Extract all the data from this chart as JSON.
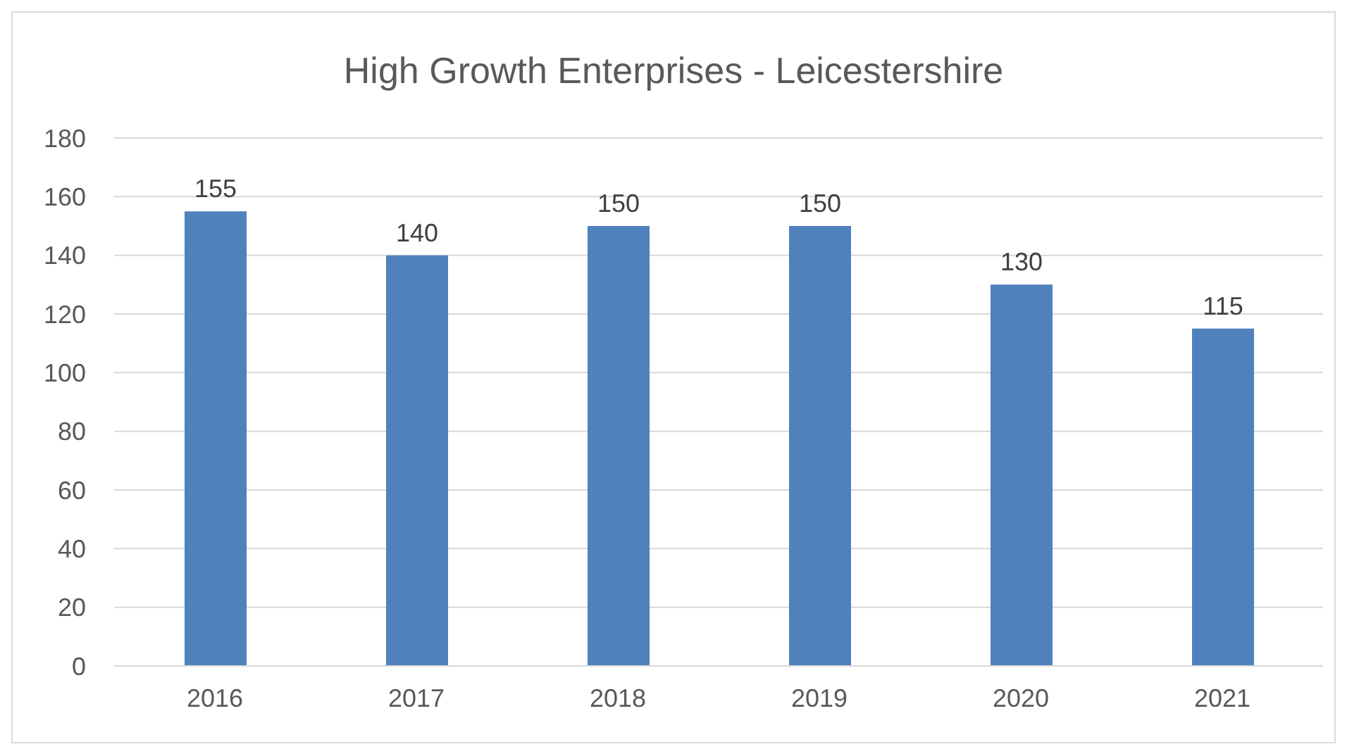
{
  "chart_data": {
    "type": "bar",
    "title": "High Growth Enterprises - Leicestershire",
    "categories": [
      "2016",
      "2017",
      "2018",
      "2019",
      "2020",
      "2021"
    ],
    "values": [
      155,
      140,
      150,
      150,
      130,
      115
    ],
    "color": "#4f81bd",
    "ylim": [
      0,
      180
    ],
    "yticks": [
      0,
      20,
      40,
      60,
      80,
      100,
      120,
      140,
      160,
      180
    ],
    "grid": "y",
    "data_labels": true,
    "legend": false
  }
}
